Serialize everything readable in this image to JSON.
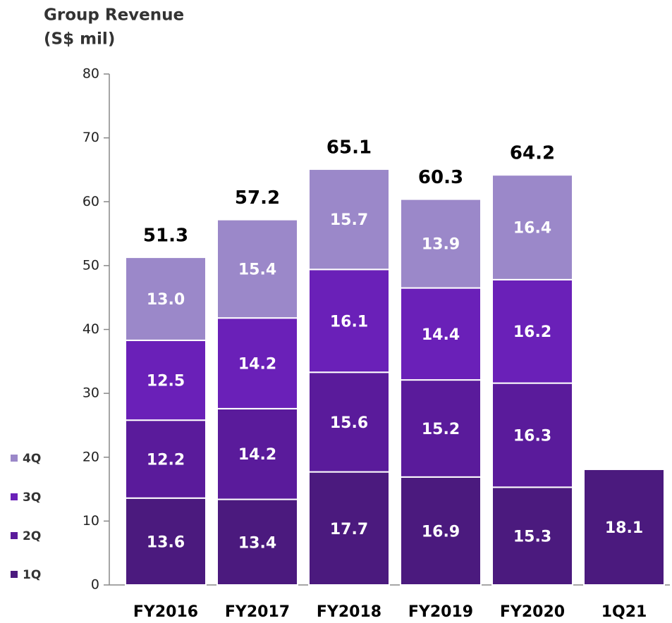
{
  "chart_data": {
    "type": "stacked_bar",
    "title_lines": [
      "Group Revenue",
      "(S$ mil)"
    ],
    "categories": [
      "FY2016",
      "FY2017",
      "FY2018",
      "FY2019",
      "FY2020",
      "1Q21"
    ],
    "series": [
      {
        "name": "1Q",
        "color": "#4b1a7e",
        "values": [
          13.6,
          13.4,
          17.7,
          16.9,
          15.3,
          18.1
        ]
      },
      {
        "name": "2Q",
        "color": "#5a1b9b",
        "values": [
          12.2,
          14.2,
          15.6,
          15.2,
          16.3,
          null
        ]
      },
      {
        "name": "3Q",
        "color": "#6a20b8",
        "values": [
          12.5,
          14.2,
          16.1,
          14.4,
          16.2,
          null
        ]
      },
      {
        "name": "4Q",
        "color": "#9b88c9",
        "values": [
          13.0,
          15.4,
          15.7,
          13.9,
          16.4,
          null
        ]
      }
    ],
    "totals": [
      51.3,
      57.2,
      65.1,
      60.3,
      64.2,
      null
    ],
    "ylim": [
      0,
      80
    ],
    "yticks": [
      0,
      10,
      20,
      30,
      40,
      50,
      60,
      70,
      80
    ],
    "value_labels": [
      [
        "13.6",
        "13.4",
        "17.7",
        "16.9",
        "15.3",
        "18.1"
      ],
      [
        "12.2",
        "14.2",
        "15.6",
        "15.2",
        "16.3",
        null
      ],
      [
        "12.5",
        "14.2",
        "16.1",
        "14.4",
        "16.2",
        null
      ],
      [
        "13.0",
        "15.4",
        "15.7",
        "13.9",
        "16.4",
        null
      ]
    ]
  }
}
